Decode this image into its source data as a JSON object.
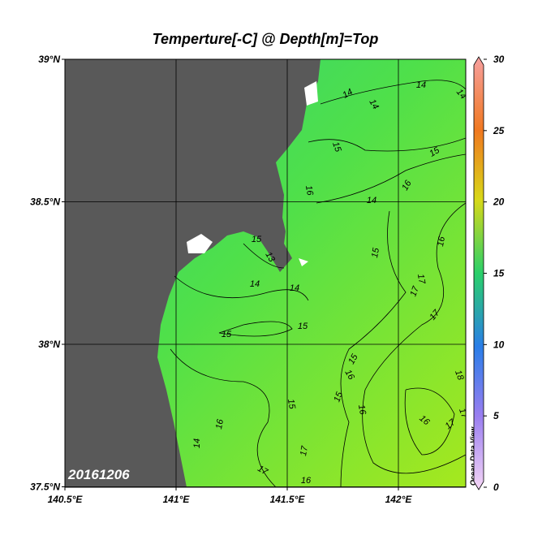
{
  "title": "Temperture[-C] @ Depth[m]=Top",
  "date_label": "20161206",
  "watermark": "Ocean Data View",
  "lon_ticks": [
    {
      "value": 140.5,
      "label": "140.5°E"
    },
    {
      "value": 141,
      "label": "141°E"
    },
    {
      "value": 141.5,
      "label": "141.5°E"
    },
    {
      "value": 142,
      "label": "142°E"
    }
  ],
  "lat_ticks": [
    {
      "value": 37.5,
      "label": "37.5°N"
    },
    {
      "value": 38,
      "label": "38°N"
    },
    {
      "value": 38.5,
      "label": "38.5°N"
    },
    {
      "value": 39,
      "label": "39°N"
    }
  ],
  "colorbar": {
    "lim": [
      0,
      30
    ],
    "ticks": [
      0,
      5,
      10,
      15,
      20,
      25,
      30
    ]
  },
  "contour_labels": [
    14,
    14,
    14,
    14,
    15,
    15,
    16,
    14,
    16,
    15,
    16,
    15,
    17,
    13,
    14,
    14,
    15,
    15,
    16,
    15,
    15,
    16,
    17,
    18,
    16,
    17,
    17,
    17,
    15,
    14,
    16,
    17,
    17,
    16
  ]
}
